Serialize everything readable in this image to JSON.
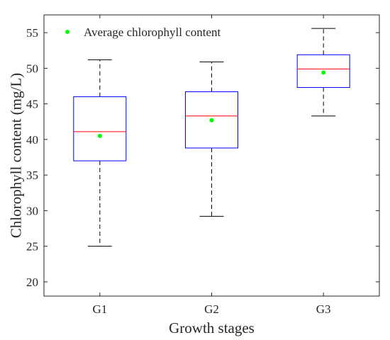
{
  "chart_data": {
    "type": "boxplot",
    "xlabel": "Growth stages",
    "ylabel": "Chlorophyll content (mg/L)",
    "categories": [
      "G1",
      "G2",
      "G3"
    ],
    "ylim": [
      18,
      57.5
    ],
    "yticks": [
      20,
      25,
      30,
      35,
      40,
      45,
      50,
      55
    ],
    "grid": false,
    "legend": {
      "position": "top-left",
      "label": "Average chlorophyll content"
    },
    "boxes": [
      {
        "category": "G1",
        "min": 25.0,
        "q1": 37.0,
        "median": 41.1,
        "q3": 46.0,
        "max": 51.2,
        "mean": 40.5
      },
      {
        "category": "G2",
        "min": 29.2,
        "q1": 38.8,
        "median": 43.3,
        "q3": 46.7,
        "max": 50.9,
        "mean": 42.7
      },
      {
        "category": "G3",
        "min": 43.3,
        "q1": 47.3,
        "median": 49.9,
        "q3": 51.9,
        "max": 55.6,
        "mean": 49.4
      }
    ],
    "colors": {
      "box": "#0000ff",
      "median": "#ff0000",
      "mean": "#00ff00",
      "whisker": "#000000",
      "axes": "#262626"
    }
  }
}
